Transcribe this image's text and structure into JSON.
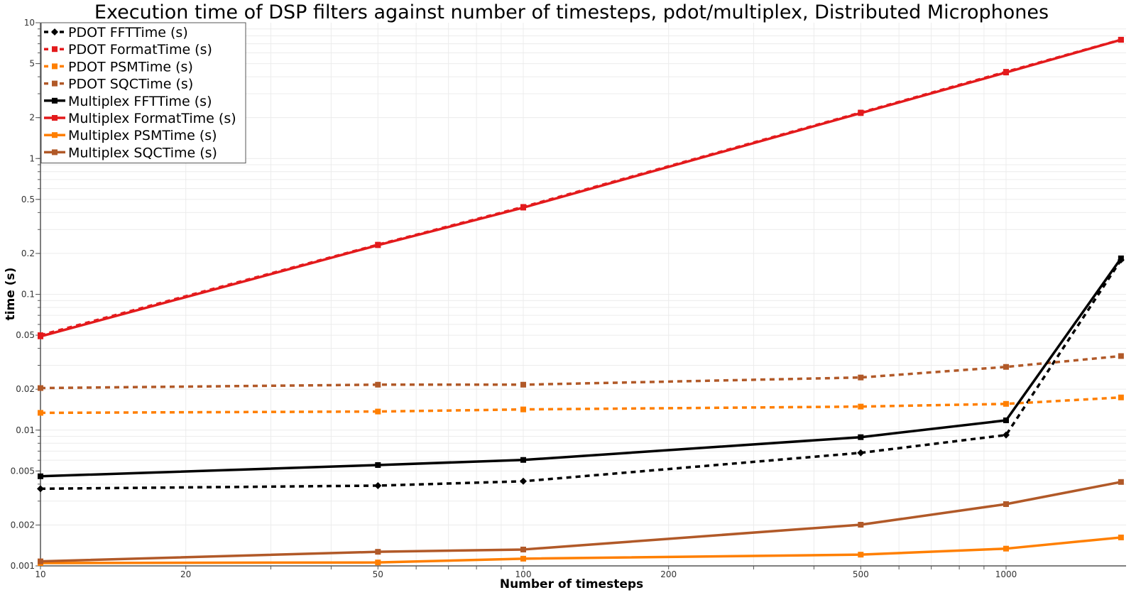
{
  "chart_data": {
    "type": "line",
    "title": "Execution time of DSP filters against number of timesteps, pdot/multiplex, Distributed Microphones",
    "xlabel": "Number of timesteps",
    "ylabel": "time (s)",
    "xscale": "log",
    "yscale": "log",
    "xlim": [
      10,
      1750
    ],
    "ylim": [
      0.001,
      10
    ],
    "x_ticks": [
      10,
      20,
      50,
      100,
      200,
      500,
      1000
    ],
    "x_tick_labels": [
      "10",
      "20",
      "50",
      "100",
      "200",
      "500",
      "1000"
    ],
    "y_ticks": [
      0.001,
      0.002,
      0.005,
      0.01,
      0.02,
      0.05,
      0.1,
      0.2,
      0.5,
      1,
      2,
      5,
      10
    ],
    "y_tick_labels": [
      "0.001",
      "0.002",
      "0.005",
      "0.01",
      "0.02",
      "0.05",
      "0.1",
      "0.2",
      "0.5",
      "1",
      "2",
      "5",
      "10"
    ],
    "grid": true,
    "legend_position": "upper left",
    "x": [
      10,
      50,
      100,
      500,
      1000,
      1730
    ],
    "series": [
      {
        "name": "PDOT FFTTime (s)",
        "color": "#000000",
        "dash": true,
        "marker": "diamond",
        "values": [
          0.0037,
          0.0039,
          0.0042,
          0.0068,
          0.0092,
          0.179
        ]
      },
      {
        "name": "PDOT FormatTime (s)",
        "color": "#e31a1c",
        "dash": true,
        "marker": "square",
        "values": [
          0.05,
          0.232,
          0.44,
          2.18,
          4.35,
          7.5
        ]
      },
      {
        "name": "PDOT PSMTime (s)",
        "color": "#ff7f00",
        "dash": true,
        "marker": "square",
        "values": [
          0.0134,
          0.0137,
          0.0142,
          0.0149,
          0.0156,
          0.0174
        ]
      },
      {
        "name": "PDOT SQCTime (s)",
        "color": "#b15928",
        "dash": true,
        "marker": "square",
        "values": [
          0.0204,
          0.0216,
          0.0216,
          0.0244,
          0.0292,
          0.0351
        ]
      },
      {
        "name": "Multiplex FFTTime (s)",
        "color": "#000000",
        "dash": false,
        "marker": "square",
        "values": [
          0.00457,
          0.00553,
          0.00603,
          0.00887,
          0.0118,
          0.184
        ]
      },
      {
        "name": "Multiplex FormatTime (s)",
        "color": "#e31a1c",
        "dash": false,
        "marker": "square",
        "values": [
          0.049,
          0.23,
          0.435,
          2.16,
          4.3,
          7.48
        ]
      },
      {
        "name": "Multiplex PSMTime (s)",
        "color": "#ff7f00",
        "dash": false,
        "marker": "square",
        "values": [
          0.00105,
          0.00106,
          0.00113,
          0.00121,
          0.00134,
          0.00162
        ]
      },
      {
        "name": "Multiplex SQCTime (s)",
        "color": "#b15928",
        "dash": false,
        "marker": "square",
        "values": [
          0.00108,
          0.00127,
          0.00132,
          0.00201,
          0.00285,
          0.00415
        ]
      }
    ]
  }
}
